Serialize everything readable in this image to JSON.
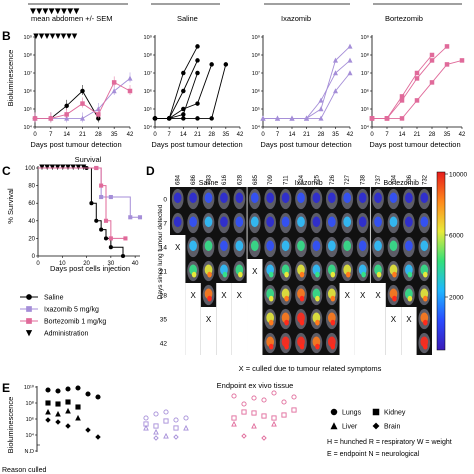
{
  "colors": {
    "saline": "#000000",
    "ixazomib": "#a58ed8",
    "bortezomib": "#e06a9a",
    "bg_dark": "#111111"
  },
  "panel_labels": [
    "B",
    "C",
    "D",
    "E"
  ],
  "panel_b": {
    "top_caption": "mean abdomen +/- SEM",
    "top_groups": [
      "Saline",
      "Ixazomib",
      "Bortezomib"
    ],
    "ylabel": "Bioluminescence",
    "xlabel": "Days post tumour detection",
    "xticks": [
      "0",
      "7",
      "14",
      "21",
      "28",
      "35",
      "42"
    ],
    "yticks": [
      "10⁴",
      "10⁵",
      "10⁶",
      "10⁷",
      "10⁸",
      "10⁹"
    ]
  },
  "panel_c": {
    "title": "Survival",
    "ylabel": "% Survival",
    "xlabel": "Days post cells injection",
    "xticks": [
      "0",
      "10",
      "20",
      "30",
      "40"
    ],
    "yticks": [
      "0",
      "20",
      "40",
      "60",
      "80",
      "100"
    ],
    "legend": [
      {
        "label": "Saline",
        "marker": "circle",
        "color": "#000000"
      },
      {
        "label": "Ixazomib 5 mg/kg",
        "marker": "square",
        "color": "#a58ed8"
      },
      {
        "label": "Bortezomib 1 mg/kg",
        "marker": "square",
        "color": "#e06a9a"
      },
      {
        "label": "Administration",
        "marker": "triangle-down",
        "color": "#000000"
      }
    ]
  },
  "panel_d": {
    "groups": [
      "Saline",
      "Ixazomib",
      "Bortezomib"
    ],
    "ids": [
      "684",
      "686",
      "733",
      "616",
      "628",
      "685",
      "709",
      "711",
      "724",
      "725",
      "726",
      "727",
      "738",
      "737",
      "734",
      "736",
      "732"
    ],
    "ylabel": "Days since lung tumour detected",
    "days": [
      "0",
      "7",
      "14",
      "21",
      "28",
      "35",
      "42"
    ],
    "colorbar_ticks": [
      "10000",
      "6000",
      "2000"
    ],
    "footnote": "X = culled due to tumour related symptoms",
    "cull_mark": "X"
  },
  "panel_e": {
    "title": "Endpoint ex vivo tissue",
    "ylabel": "Bioluminescence",
    "yticks": [
      "10¹⁰",
      "10⁸",
      "10⁶",
      "10⁴",
      "N.D"
    ],
    "legend": [
      {
        "label": "Lungs",
        "marker": "circle"
      },
      {
        "label": "Kidney",
        "marker": "square"
      },
      {
        "label": "Liver",
        "marker": "triangle"
      },
      {
        "label": "Brain",
        "marker": "diamond"
      }
    ],
    "abbreviations": [
      "H = hunched  R = respiratory  W = weight",
      "E = endpoint   N = neurological"
    ],
    "bottom_label": "Reason culled"
  },
  "chart_data": [
    {
      "type": "line",
      "title": "mean abdomen +/- SEM",
      "xlabel": "Days post tumour detection",
      "ylabel": "Bioluminescence",
      "log_y": true,
      "xlim": [
        0,
        42
      ],
      "ylim": [
        10000,
        1000000000
      ],
      "series": [
        {
          "name": "Saline",
          "x": [
            0,
            7,
            14,
            21,
            28
          ],
          "y": [
            30000,
            30000,
            150000,
            1000000,
            30000
          ]
        },
        {
          "name": "Ixazomib",
          "x": [
            0,
            7,
            14,
            21,
            28,
            35,
            42
          ],
          "y": [
            30000,
            30000,
            30000,
            30000,
            100000,
            1000000,
            5000000
          ]
        },
        {
          "name": "Bortezomib",
          "x": [
            0,
            7,
            14,
            21,
            28,
            35,
            42
          ],
          "y": [
            30000,
            30000,
            50000,
            200000,
            50000,
            3000000,
            1000000
          ]
        }
      ]
    },
    {
      "type": "line",
      "title": "Saline",
      "log_y": true,
      "xlim": [
        0,
        42
      ],
      "ylim": [
        10000,
        1000000000
      ],
      "series": [
        {
          "name": "684",
          "x": [
            0,
            7,
            14,
            21
          ],
          "y": [
            30000,
            30000,
            10000000,
            300000000
          ]
        },
        {
          "name": "686",
          "x": [
            0,
            7,
            14,
            21
          ],
          "y": [
            30000,
            30000,
            1000000,
            50000000
          ]
        },
        {
          "name": "733",
          "x": [
            0,
            7,
            14,
            21
          ],
          "y": [
            30000,
            30000,
            50000,
            10000000
          ]
        },
        {
          "name": "616",
          "x": [
            0,
            7,
            14,
            21,
            28
          ],
          "y": [
            30000,
            30000,
            100000,
            200000,
            30000000
          ]
        },
        {
          "name": "628",
          "x": [
            0,
            7,
            14,
            21,
            28,
            35
          ],
          "y": [
            30000,
            30000,
            30000,
            30000,
            30000,
            30000000
          ]
        }
      ]
    },
    {
      "type": "line",
      "title": "Ixazomib",
      "log_y": true,
      "xlim": [
        0,
        42
      ],
      "ylim": [
        10000,
        1000000000
      ],
      "series": [
        {
          "name": "709",
          "x": [
            0,
            7,
            14,
            21,
            28,
            35,
            42
          ],
          "y": [
            30000,
            30000,
            30000,
            30000,
            100000,
            50000000,
            300000000
          ]
        },
        {
          "name": "711",
          "x": [
            0,
            7,
            14,
            21,
            28,
            35,
            42
          ],
          "y": [
            30000,
            30000,
            30000,
            30000,
            300000,
            10000000,
            50000000
          ]
        },
        {
          "name": "724",
          "x": [
            0,
            7,
            14,
            21,
            28,
            35,
            42
          ],
          "y": [
            30000,
            30000,
            30000,
            30000,
            30000,
            1000000,
            10000000
          ]
        }
      ]
    },
    {
      "type": "line",
      "title": "Bortezomib",
      "log_y": true,
      "xlim": [
        0,
        42
      ],
      "ylim": [
        10000,
        1000000000
      ],
      "series": [
        {
          "name": "734",
          "x": [
            0,
            7,
            14,
            21,
            28,
            35
          ],
          "y": [
            30000,
            30000,
            300000,
            5000000,
            50000000,
            300000000
          ]
        },
        {
          "name": "736",
          "x": [
            0,
            7,
            14,
            21,
            28
          ],
          "y": [
            30000,
            30000,
            500000,
            10000000,
            100000000
          ]
        },
        {
          "name": "732",
          "x": [
            0,
            7,
            14,
            21,
            28,
            35,
            42
          ],
          "y": [
            30000,
            30000,
            30000,
            300000,
            3000000,
            30000000,
            50000000
          ]
        }
      ]
    },
    {
      "type": "line",
      "title": "Survival",
      "xlabel": "Days post cells injection",
      "ylabel": "% Survival",
      "xlim": [
        0,
        42
      ],
      "ylim": [
        0,
        100
      ],
      "series": [
        {
          "name": "Saline",
          "x": [
            0,
            20,
            22,
            24,
            26,
            28,
            30,
            35
          ],
          "y": [
            100,
            100,
            60,
            40,
            30,
            20,
            10,
            0
          ]
        },
        {
          "name": "Ixazomib 5 mg/kg",
          "x": [
            0,
            24,
            26,
            30,
            38,
            42
          ],
          "y": [
            100,
            100,
            67,
            67,
            44,
            44
          ]
        },
        {
          "name": "Bortezomib 1 mg/kg",
          "x": [
            0,
            24,
            26,
            28,
            30,
            36
          ],
          "y": [
            100,
            100,
            80,
            40,
            20,
            20
          ]
        }
      ]
    }
  ]
}
